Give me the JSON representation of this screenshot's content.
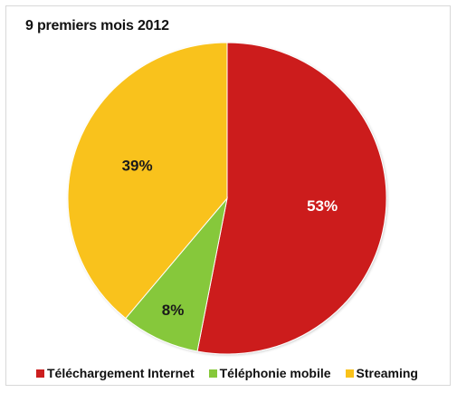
{
  "chart_data": {
    "type": "pie",
    "title": "9 premiers mois 2012",
    "categories": [
      "Téléchargement Internet",
      "Téléphonie mobile",
      "Streaming"
    ],
    "values": [
      53,
      8,
      39
    ],
    "labels": [
      "53%",
      "8%",
      "39%"
    ],
    "colors": [
      "#cc1f1f",
      "#86c83a",
      "#f9c21a"
    ],
    "label_colors": [
      "#ffffff",
      "#1a1a1a",
      "#1a1a1a"
    ],
    "legend_placement": "bottom"
  }
}
